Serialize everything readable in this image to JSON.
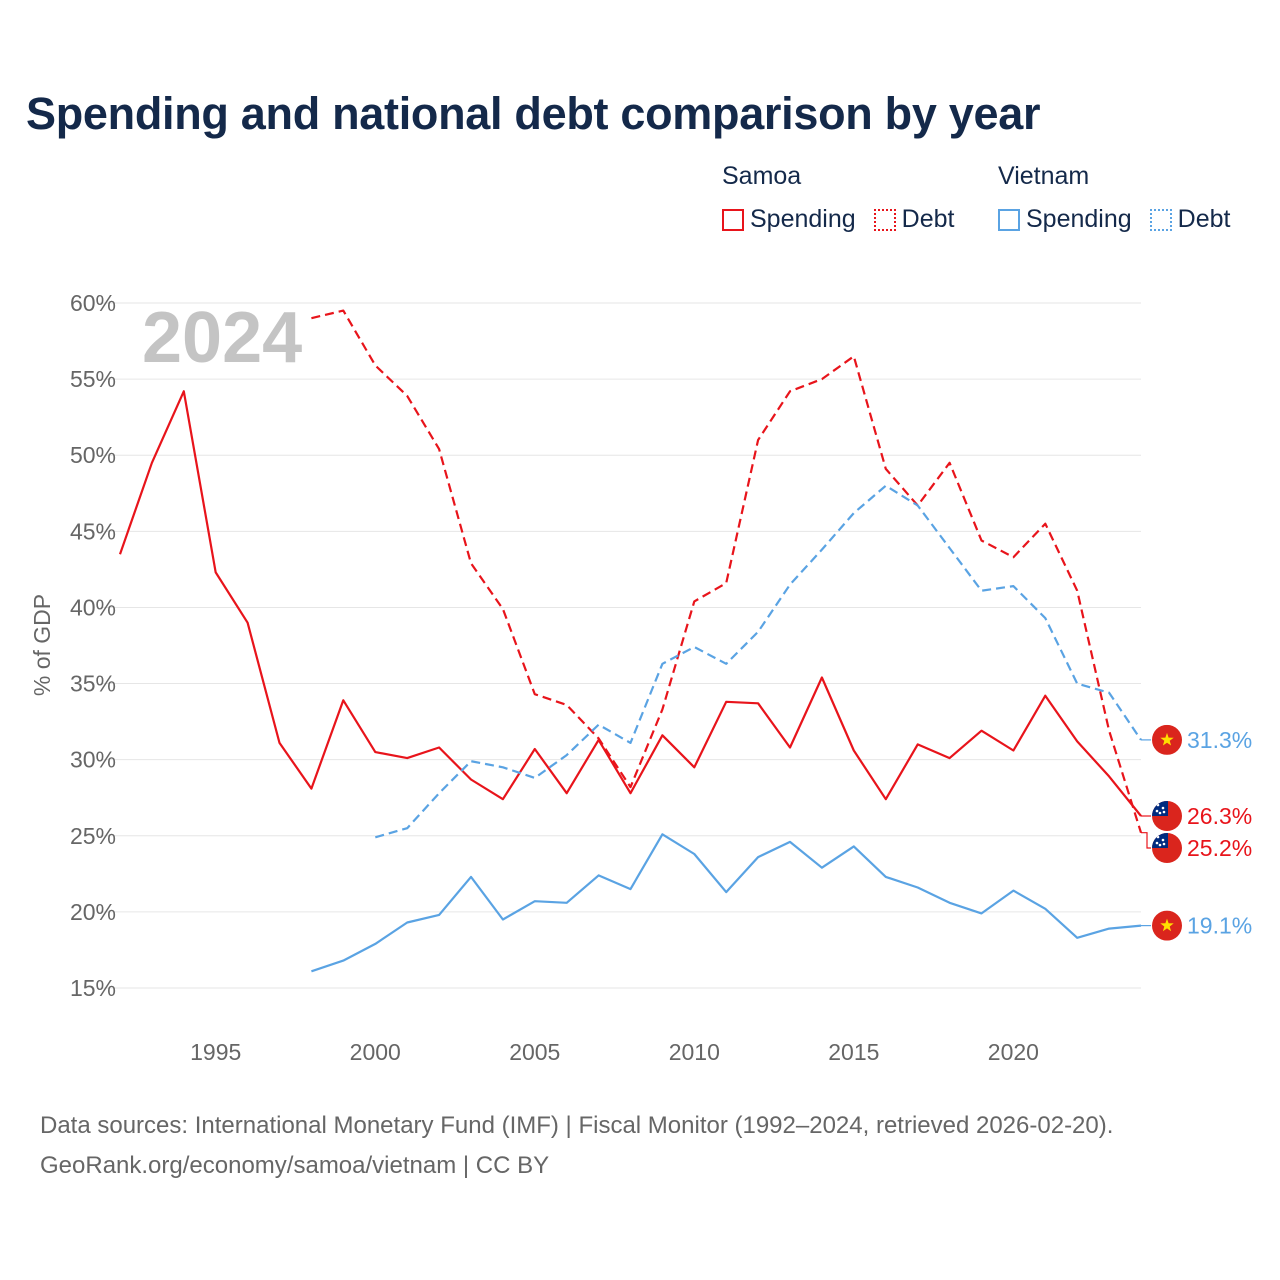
{
  "title": "Spending and national debt comparison by year",
  "legend": {
    "groups": [
      {
        "country": "Samoa",
        "color": "#e8141b",
        "items": [
          {
            "label": "Spending",
            "style": "solid"
          },
          {
            "label": "Debt",
            "style": "dotted"
          }
        ]
      },
      {
        "country": "Vietnam",
        "color": "#5aa3e3",
        "items": [
          {
            "label": "Spending",
            "style": "solid"
          },
          {
            "label": "Debt",
            "style": "dotted"
          }
        ]
      }
    ]
  },
  "year_watermark": "2024",
  "footer": {
    "line1": "Data sources: International Monetary Fund (IMF) | Fiscal Monitor (1992–2024, retrieved 2026-02-20).",
    "line2": "GeoRank.org/economy/samoa/vietnam | CC BY"
  },
  "chart_data": {
    "type": "line",
    "title": "Spending and national debt comparison by year",
    "xlabel": "",
    "ylabel": "% of GDP",
    "xlim": [
      1992,
      2024
    ],
    "ylim": [
      15,
      60
    ],
    "xticks": [
      1995,
      2000,
      2005,
      2010,
      2015,
      2020
    ],
    "yticks": [
      15,
      20,
      25,
      30,
      35,
      40,
      45,
      50,
      55,
      60
    ],
    "ytick_labels": [
      "15%",
      "20%",
      "25%",
      "30%",
      "35%",
      "40%",
      "45%",
      "50%",
      "55%",
      "60%"
    ],
    "grid": true,
    "series": [
      {
        "name": "Samoa Spending",
        "country": "Samoa",
        "flag": "samoa",
        "color": "#e8141b",
        "dash": "solid",
        "end_label": "26.3%",
        "x": [
          1992,
          1993,
          1994,
          1995,
          1996,
          1997,
          1998,
          1999,
          2000,
          2001,
          2002,
          2003,
          2004,
          2005,
          2006,
          2007,
          2008,
          2009,
          2010,
          2011,
          2012,
          2013,
          2014,
          2015,
          2016,
          2017,
          2018,
          2019,
          2020,
          2021,
          2022,
          2023,
          2024
        ],
        "values": [
          43.5,
          49.5,
          54.2,
          42.3,
          39.0,
          31.1,
          28.1,
          33.9,
          30.5,
          30.1,
          30.8,
          28.7,
          27.4,
          30.7,
          27.8,
          31.3,
          27.8,
          31.6,
          29.5,
          33.8,
          33.7,
          30.8,
          35.4,
          30.6,
          27.4,
          31.0,
          30.1,
          31.9,
          30.6,
          34.2,
          31.2,
          28.9,
          26.3
        ]
      },
      {
        "name": "Samoa Debt",
        "country": "Samoa",
        "flag": "samoa",
        "color": "#e8141b",
        "dash": "dashed",
        "end_label": "25.2%",
        "x": [
          1998,
          1999,
          2000,
          2001,
          2002,
          2003,
          2004,
          2005,
          2006,
          2007,
          2008,
          2009,
          2010,
          2011,
          2012,
          2013,
          2014,
          2015,
          2016,
          2017,
          2018,
          2019,
          2020,
          2021,
          2022,
          2023,
          2024
        ],
        "values": [
          59.0,
          59.5,
          55.9,
          53.9,
          50.4,
          42.9,
          39.9,
          34.3,
          33.6,
          31.4,
          28.2,
          33.3,
          40.4,
          41.6,
          51.0,
          54.2,
          55.0,
          56.5,
          49.1,
          46.7,
          49.5,
          44.4,
          43.3,
          45.5,
          41.1,
          31.9,
          25.2
        ]
      },
      {
        "name": "Vietnam Spending",
        "country": "Vietnam",
        "flag": "vietnam",
        "color": "#5aa3e3",
        "dash": "solid",
        "end_label": "19.1%",
        "x": [
          1998,
          1999,
          2000,
          2001,
          2002,
          2003,
          2004,
          2005,
          2006,
          2007,
          2008,
          2009,
          2010,
          2011,
          2012,
          2013,
          2014,
          2015,
          2016,
          2017,
          2018,
          2019,
          2020,
          2021,
          2022,
          2023,
          2024
        ],
        "values": [
          16.1,
          16.8,
          17.9,
          19.3,
          19.8,
          22.3,
          19.5,
          20.7,
          20.6,
          22.4,
          21.5,
          25.1,
          23.8,
          21.3,
          23.6,
          24.6,
          22.9,
          24.3,
          22.3,
          21.6,
          20.6,
          19.9,
          21.4,
          20.2,
          18.3,
          18.9,
          19.1
        ]
      },
      {
        "name": "Vietnam Debt",
        "country": "Vietnam",
        "flag": "vietnam",
        "color": "#5aa3e3",
        "dash": "dashed",
        "end_label": "31.3%",
        "x": [
          2000,
          2001,
          2002,
          2003,
          2004,
          2005,
          2006,
          2007,
          2008,
          2009,
          2010,
          2011,
          2012,
          2013,
          2014,
          2015,
          2016,
          2017,
          2018,
          2019,
          2020,
          2021,
          2022,
          2023,
          2024
        ],
        "values": [
          24.9,
          25.5,
          27.8,
          29.9,
          29.5,
          28.8,
          30.3,
          32.3,
          31.1,
          36.3,
          37.4,
          36.3,
          38.4,
          41.5,
          43.8,
          46.2,
          48.0,
          46.7,
          43.9,
          41.1,
          41.4,
          39.3,
          35.0,
          34.4,
          31.3
        ]
      }
    ]
  }
}
